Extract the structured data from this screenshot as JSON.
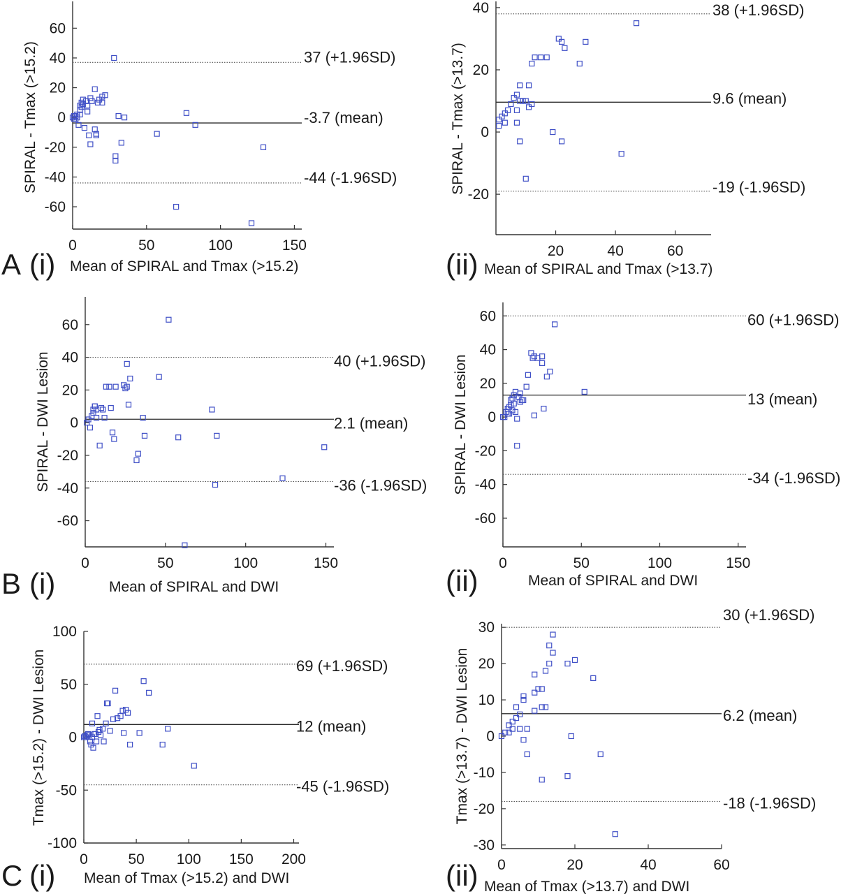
{
  "figure": {
    "rows": [
      {
        "letter": "A"
      },
      {
        "letter": "B"
      },
      {
        "letter": "C"
      }
    ]
  },
  "chart_data": [
    {
      "id": "Ai",
      "type": "scatter",
      "row_letter": "A",
      "panel_label": "(i)",
      "xlabel": "Mean of SPIRAL and Tmax (>15.2)",
      "ylabel": "SPIRAL - Tmax (>15.2)",
      "xlim": [
        0,
        155
      ],
      "ylim": [
        -75,
        78
      ],
      "xticks": [
        0,
        50,
        100,
        150
      ],
      "yticks": [
        -60,
        -40,
        -20,
        0,
        20,
        40,
        60
      ],
      "lines": [
        {
          "value": 37,
          "style": "dotted",
          "label": "37 (+1.96SD)"
        },
        {
          "value": -3.7,
          "style": "solid",
          "label": "-3.7 (mean)"
        },
        {
          "value": -44,
          "style": "dotted",
          "label": "-44 (-1.96SD)"
        }
      ],
      "marker_color": "#3f4fc6",
      "points": [
        [
          0,
          0
        ],
        [
          1,
          1
        ],
        [
          1,
          -1
        ],
        [
          2,
          1
        ],
        [
          2,
          -1
        ],
        [
          3,
          0
        ],
        [
          3,
          2
        ],
        [
          4,
          -5
        ],
        [
          5,
          5
        ],
        [
          5,
          8
        ],
        [
          5,
          2
        ],
        [
          6,
          10
        ],
        [
          6,
          7
        ],
        [
          7,
          12
        ],
        [
          7,
          9
        ],
        [
          8,
          -7
        ],
        [
          9,
          11
        ],
        [
          10,
          8
        ],
        [
          10,
          4
        ],
        [
          11,
          -12
        ],
        [
          12,
          13
        ],
        [
          12,
          -18
        ],
        [
          13,
          11
        ],
        [
          15,
          19
        ],
        [
          15,
          -8
        ],
        [
          16,
          -11
        ],
        [
          16,
          -12
        ],
        [
          17,
          10
        ],
        [
          18,
          12
        ],
        [
          20,
          14
        ],
        [
          20,
          10
        ],
        [
          22,
          15
        ],
        [
          28,
          40
        ],
        [
          29,
          -26
        ],
        [
          29,
          -29
        ],
        [
          31,
          1
        ],
        [
          33,
          -17
        ],
        [
          35,
          0
        ],
        [
          57,
          -11
        ],
        [
          70,
          -60
        ],
        [
          77,
          3
        ],
        [
          83,
          -5
        ],
        [
          121,
          -71
        ],
        [
          129,
          -20
        ]
      ]
    },
    {
      "id": "Aii",
      "type": "scatter",
      "row_letter": "",
      "panel_label": "(ii)",
      "xlabel": "Mean of SPIRAL and Tmax (>13.7)",
      "ylabel": "SPIRAL - Tmax (>13.7)",
      "xlim": [
        0,
        72
      ],
      "ylim": [
        -33,
        42
      ],
      "xticks": [
        20,
        40,
        60
      ],
      "yticks": [
        -20,
        0,
        20,
        40
      ],
      "lines": [
        {
          "value": 38,
          "style": "dotted",
          "label": "38 (+1.96SD)"
        },
        {
          "value": 9.6,
          "style": "solid",
          "label": "9.6 (mean)"
        },
        {
          "value": -19,
          "style": "dotted",
          "label": "-19 (-1.96SD)"
        }
      ],
      "marker_color": "#3f4fc6",
      "points": [
        [
          1,
          2
        ],
        [
          1,
          4
        ],
        [
          2,
          5
        ],
        [
          3,
          3
        ],
        [
          3,
          6
        ],
        [
          4,
          7
        ],
        [
          5,
          9
        ],
        [
          6,
          11
        ],
        [
          7,
          12
        ],
        [
          7,
          7
        ],
        [
          7,
          3
        ],
        [
          8,
          -3
        ],
        [
          8,
          15
        ],
        [
          8,
          10
        ],
        [
          9,
          10
        ],
        [
          9,
          10
        ],
        [
          10,
          -15
        ],
        [
          10,
          10
        ],
        [
          11,
          8
        ],
        [
          11,
          15
        ],
        [
          12,
          22
        ],
        [
          12,
          9
        ],
        [
          13,
          24
        ],
        [
          15,
          24
        ],
        [
          17,
          24
        ],
        [
          19,
          0
        ],
        [
          21,
          30
        ],
        [
          22,
          29
        ],
        [
          22,
          -3
        ],
        [
          23,
          27
        ],
        [
          28,
          22
        ],
        [
          30,
          29
        ],
        [
          42,
          -7
        ],
        [
          47,
          35
        ]
      ]
    },
    {
      "id": "Bi",
      "type": "scatter",
      "row_letter": "B",
      "panel_label": "(i)",
      "xlabel": "Mean of SPIRAL and DWI",
      "ylabel": "SPIRAL - DWI Lesion",
      "xlim": [
        0,
        155
      ],
      "ylim": [
        -76,
        77
      ],
      "xticks": [
        0,
        50,
        100,
        150
      ],
      "yticks": [
        -60,
        -40,
        -20,
        0,
        20,
        40,
        60
      ],
      "lines": [
        {
          "value": 40,
          "style": "dotted",
          "label": "40 (+1.96SD)"
        },
        {
          "value": 2.1,
          "style": "solid",
          "label": "2.1 (mean)"
        },
        {
          "value": -36,
          "style": "dotted",
          "label": "-36 (-1.96SD)"
        }
      ],
      "marker_color": "#3f4fc6",
      "points": [
        [
          1,
          0
        ],
        [
          2,
          2
        ],
        [
          3,
          -3
        ],
        [
          4,
          4
        ],
        [
          5,
          6
        ],
        [
          5,
          8
        ],
        [
          6,
          10
        ],
        [
          6,
          10
        ],
        [
          7,
          3
        ],
        [
          7,
          8
        ],
        [
          9,
          -14
        ],
        [
          10,
          9
        ],
        [
          11,
          8
        ],
        [
          12,
          3
        ],
        [
          13,
          22
        ],
        [
          15,
          22
        ],
        [
          16,
          9
        ],
        [
          17,
          -6
        ],
        [
          18,
          -10
        ],
        [
          19,
          22
        ],
        [
          24,
          23
        ],
        [
          25,
          21
        ],
        [
          26,
          36
        ],
        [
          26,
          22
        ],
        [
          27,
          11
        ],
        [
          28,
          27
        ],
        [
          32,
          -23
        ],
        [
          33,
          -19
        ],
        [
          36,
          3
        ],
        [
          37,
          -8
        ],
        [
          46,
          28
        ],
        [
          52,
          63
        ],
        [
          58,
          -9
        ],
        [
          62,
          -75
        ],
        [
          79,
          8
        ],
        [
          81,
          -38
        ],
        [
          82,
          -8
        ],
        [
          123,
          -34
        ],
        [
          149,
          -15
        ]
      ]
    },
    {
      "id": "Bii",
      "type": "scatter",
      "row_letter": "",
      "panel_label": "(ii)",
      "xlabel": "Mean of SPIRAL and DWI",
      "ylabel": "SPIRAL - DWI Lesion",
      "xlim": [
        0,
        155
      ],
      "ylim": [
        -77,
        68
      ],
      "xticks": [
        0,
        50,
        100,
        150
      ],
      "yticks": [
        -60,
        -40,
        -20,
        0,
        20,
        40,
        60
      ],
      "lines": [
        {
          "value": 60,
          "style": "dotted",
          "label": "60 (+1.96SD)"
        },
        {
          "value": 13,
          "style": "solid",
          "label": "13 (mean)"
        },
        {
          "value": -34,
          "style": "dotted",
          "label": "-34 (-1.96SD)"
        }
      ],
      "marker_color": "#3f4fc6",
      "points": [
        [
          0,
          0
        ],
        [
          1,
          0
        ],
        [
          2,
          3
        ],
        [
          3,
          2
        ],
        [
          3,
          5
        ],
        [
          4,
          6
        ],
        [
          4,
          2
        ],
        [
          5,
          7
        ],
        [
          5,
          10
        ],
        [
          6,
          4
        ],
        [
          6,
          11
        ],
        [
          7,
          8
        ],
        [
          7,
          13
        ],
        [
          8,
          15
        ],
        [
          8,
          3
        ],
        [
          9,
          -1
        ],
        [
          9,
          -17
        ],
        [
          10,
          12
        ],
        [
          11,
          14
        ],
        [
          11,
          9
        ],
        [
          12,
          10
        ],
        [
          13,
          10
        ],
        [
          15,
          18
        ],
        [
          16,
          25
        ],
        [
          18,
          38
        ],
        [
          19,
          35
        ],
        [
          20,
          36
        ],
        [
          20,
          1
        ],
        [
          22,
          35
        ],
        [
          25,
          32
        ],
        [
          25,
          36
        ],
        [
          26,
          5
        ],
        [
          28,
          24
        ],
        [
          30,
          27
        ],
        [
          33,
          55
        ],
        [
          52,
          15
        ]
      ]
    },
    {
      "id": "Ci",
      "type": "scatter",
      "row_letter": "C",
      "panel_label": "(i)",
      "xlabel": "Mean of Tmax (>15.2) and DWI",
      "ylabel": "Tmax (>15.2) - DWI Lesion",
      "xlim": [
        0,
        205
      ],
      "ylim": [
        -100,
        100
      ],
      "xticks": [
        0,
        50,
        100,
        150,
        200
      ],
      "yticks": [
        -100,
        -50,
        0,
        50,
        100
      ],
      "lines": [
        {
          "value": 69,
          "style": "dotted",
          "label": "69 (+1.96SD)"
        },
        {
          "value": 12,
          "style": "solid",
          "label": "12 (mean)"
        },
        {
          "value": -45,
          "style": "dotted",
          "label": "-45 (-1.96SD)"
        }
      ],
      "marker_color": "#3f4fc6",
      "points": [
        [
          0,
          0
        ],
        [
          1,
          1
        ],
        [
          2,
          0
        ],
        [
          3,
          2
        ],
        [
          4,
          3
        ],
        [
          5,
          2
        ],
        [
          6,
          -4
        ],
        [
          7,
          -7
        ],
        [
          8,
          13
        ],
        [
          8,
          0
        ],
        [
          9,
          -10
        ],
        [
          10,
          3
        ],
        [
          11,
          3
        ],
        [
          12,
          -4
        ],
        [
          13,
          20
        ],
        [
          14,
          5
        ],
        [
          15,
          7
        ],
        [
          16,
          2
        ],
        [
          18,
          8
        ],
        [
          19,
          -4
        ],
        [
          21,
          13
        ],
        [
          22,
          32
        ],
        [
          23,
          32
        ],
        [
          25,
          6
        ],
        [
          28,
          17
        ],
        [
          30,
          44
        ],
        [
          32,
          18
        ],
        [
          35,
          20
        ],
        [
          37,
          25
        ],
        [
          38,
          4
        ],
        [
          40,
          26
        ],
        [
          42,
          23
        ],
        [
          44,
          -7
        ],
        [
          53,
          4
        ],
        [
          57,
          53
        ],
        [
          62,
          42
        ],
        [
          75,
          -7
        ],
        [
          80,
          8
        ],
        [
          105,
          -27
        ]
      ]
    },
    {
      "id": "Cii",
      "type": "scatter",
      "row_letter": "",
      "panel_label": "(ii)",
      "xlabel": "Mean of Tmax (>13.7) and DWI",
      "ylabel": "Tmax (>13.7) - DWI Lesion",
      "xlim": [
        0,
        60
      ],
      "ylim": [
        -31,
        31
      ],
      "xticks": [
        0,
        20,
        40,
        60
      ],
      "yticks": [
        -30,
        -20,
        -10,
        0,
        10,
        20,
        30
      ],
      "lines": [
        {
          "value": 30,
          "style": "dotted",
          "label": "30 (+1.96SD)"
        },
        {
          "value": 6.2,
          "style": "solid",
          "label": "6.2 (mean)"
        },
        {
          "value": -18,
          "style": "dotted",
          "label": "-18 (-1.96SD)"
        }
      ],
      "marker_color": "#3f4fc6",
      "points": [
        [
          0,
          0
        ],
        [
          1,
          1
        ],
        [
          2,
          3
        ],
        [
          2,
          1
        ],
        [
          3,
          4
        ],
        [
          3,
          2
        ],
        [
          4,
          5
        ],
        [
          4,
          8
        ],
        [
          5,
          6
        ],
        [
          5,
          2
        ],
        [
          6,
          -1
        ],
        [
          6,
          10
        ],
        [
          6,
          11
        ],
        [
          7,
          2
        ],
        [
          7,
          -5
        ],
        [
          9,
          12
        ],
        [
          9,
          17
        ],
        [
          9,
          7
        ],
        [
          10,
          13
        ],
        [
          11,
          13
        ],
        [
          11,
          -12
        ],
        [
          11,
          8
        ],
        [
          12,
          8
        ],
        [
          12,
          18
        ],
        [
          13,
          25
        ],
        [
          13,
          20
        ],
        [
          14,
          28
        ],
        [
          14,
          23
        ],
        [
          18,
          20
        ],
        [
          18,
          -11
        ],
        [
          19,
          0
        ],
        [
          20,
          21
        ],
        [
          25,
          16
        ],
        [
          27,
          -5
        ],
        [
          31,
          -27
        ]
      ]
    }
  ]
}
